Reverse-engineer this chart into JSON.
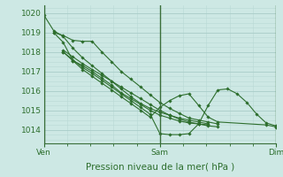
{
  "background_color": "#cde8e4",
  "plot_bg_color": "#cde8e4",
  "grid_color": "#b0d8d4",
  "line_color": "#2d6e2d",
  "marker_color": "#2d6e2d",
  "vline_color": "#3a6e3a",
  "ylabel_ticks": [
    1014,
    1015,
    1016,
    1017,
    1018,
    1019,
    1020
  ],
  "ylim": [
    1013.3,
    1020.4
  ],
  "xlabel": "Pression niveau de la mer( hPa )",
  "xtick_labels": [
    "Ven",
    "Sam",
    "Dim"
  ],
  "xtick_positions": [
    0.0,
    0.5,
    1.0
  ],
  "series": [
    [
      1019.9,
      1019.1,
      1018.8,
      1018.2,
      1017.7,
      1017.3,
      1016.9,
      1016.5,
      1016.1,
      1015.7,
      1015.35,
      1015.1,
      1014.9,
      1014.75,
      1014.6,
      1014.5,
      1014.4,
      1014.3
    ],
    [
      1019.0,
      1018.85,
      1018.6,
      1018.55,
      1018.55,
      1018.0,
      1017.5,
      1017.0,
      1016.6,
      1016.2,
      1015.8,
      1015.4,
      1015.1,
      1014.85,
      1014.6,
      1014.5,
      1014.4,
      1014.3
    ],
    [
      1019.0,
      1018.5,
      1017.55,
      1017.3,
      1017.0,
      1016.65,
      1016.3,
      1015.9,
      1015.6,
      1015.3,
      1015.0,
      1014.75,
      1014.6,
      1014.45,
      1014.35,
      1014.3,
      1014.25
    ],
    [
      1018.1,
      1017.75,
      1017.4,
      1017.1,
      1016.8,
      1016.5,
      1016.2,
      1015.9,
      1015.6,
      1015.3,
      1015.0,
      1014.75,
      1014.55,
      1014.4,
      1014.3,
      1014.2,
      1014.15
    ],
    [
      1018.0,
      1017.6,
      1017.2,
      1016.9,
      1016.55,
      1016.2,
      1015.85,
      1015.5,
      1015.15,
      1014.8,
      1013.8,
      1013.75,
      1013.75,
      1013.8,
      1014.3,
      1015.25,
      1016.05,
      1016.1,
      1015.85,
      1015.4,
      1014.8,
      1014.35,
      1014.2,
      1014.15
    ],
    [
      1018.0,
      1017.55,
      1017.1,
      1016.75,
      1016.4,
      1016.05,
      1015.7,
      1015.35,
      1015.0,
      1014.65,
      1015.15,
      1015.5,
      1015.75,
      1015.85,
      1015.25,
      1014.65,
      1014.4,
      1014.25,
      1014.15,
      1014.1
    ]
  ],
  "series_x": [
    [
      0.0,
      0.042,
      0.083,
      0.125,
      0.167,
      0.208,
      0.25,
      0.292,
      0.333,
      0.375,
      0.417,
      0.458,
      0.5,
      0.542,
      0.583,
      0.625,
      0.667,
      0.708
    ],
    [
      0.042,
      0.083,
      0.125,
      0.167,
      0.208,
      0.25,
      0.292,
      0.333,
      0.375,
      0.417,
      0.458,
      0.5,
      0.542,
      0.583,
      0.625,
      0.667,
      0.708,
      0.75
    ],
    [
      0.042,
      0.083,
      0.125,
      0.167,
      0.208,
      0.25,
      0.292,
      0.333,
      0.375,
      0.417,
      0.458,
      0.5,
      0.542,
      0.583,
      0.625,
      0.667,
      0.708
    ],
    [
      0.083,
      0.125,
      0.167,
      0.208,
      0.25,
      0.292,
      0.333,
      0.375,
      0.417,
      0.458,
      0.5,
      0.542,
      0.583,
      0.625,
      0.667,
      0.708,
      0.75
    ],
    [
      0.083,
      0.125,
      0.167,
      0.208,
      0.25,
      0.292,
      0.333,
      0.375,
      0.417,
      0.458,
      0.5,
      0.542,
      0.583,
      0.625,
      0.667,
      0.708,
      0.75,
      0.792,
      0.833,
      0.875,
      0.917,
      0.958,
      1.0,
      1.0
    ],
    [
      0.083,
      0.125,
      0.167,
      0.208,
      0.25,
      0.292,
      0.333,
      0.375,
      0.417,
      0.458,
      0.5,
      0.542,
      0.583,
      0.625,
      0.667,
      0.708,
      0.75,
      0.958,
      1.0,
      1.0
    ]
  ],
  "figsize": [
    3.2,
    2.0
  ],
  "dpi": 100,
  "tick_fontsize": 6.5,
  "xlabel_fontsize": 7.5
}
